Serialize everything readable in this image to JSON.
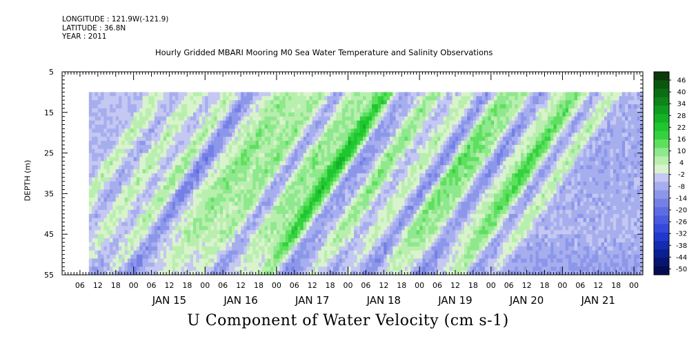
{
  "header": {
    "longitude": "LONGITUDE : 121.9W(-121.9)",
    "latitude": "LATITUDE : 36.8N",
    "year": "YEAR : 2011"
  },
  "chart_data": {
    "type": "heatmap",
    "title": "Hourly Gridded MBARI Mooring M0 Sea Water Temperature and Salinity Observations",
    "xlabel": "U Component of Water Velocity (cm s-1)",
    "ylabel": "DEPTH (m)",
    "y_axis": {
      "range": [
        5,
        55
      ],
      "inverted": true,
      "ticks": [
        5,
        15,
        25,
        35,
        45,
        55
      ],
      "data_depth_range": [
        10,
        55
      ]
    },
    "x_axis": {
      "start": "2011-01-14T00:00",
      "end": "2011-01-22T03:00",
      "data_start": "2011-01-14T09:00",
      "data_end": "2011-01-22T03:00",
      "hour_tick_labels": [
        "06",
        "12",
        "18",
        "00",
        "06",
        "12",
        "18",
        "00",
        "06",
        "12",
        "18",
        "00",
        "06",
        "12",
        "18",
        "00",
        "06",
        "12",
        "18",
        "00",
        "06",
        "12",
        "18",
        "00",
        "06",
        "12",
        "18",
        "00",
        "06",
        "12",
        "18",
        "00"
      ],
      "day_labels": [
        "JAN 15",
        "JAN 16",
        "JAN 17",
        "JAN 18",
        "JAN 19",
        "JAN 20",
        "JAN 21"
      ]
    },
    "colorbar": {
      "labels": [
        "46",
        "40",
        "34",
        "28",
        "22",
        "16",
        "10",
        "4",
        "-2",
        "-8",
        "-14",
        "-20",
        "-26",
        "-32",
        "-38",
        "-44",
        "-50"
      ],
      "colors": [
        "#0a3a0a",
        "#0b560f",
        "#0b6e12",
        "#0c8519",
        "#109c1f",
        "#15b226",
        "#1fc62f",
        "#35d23f",
        "#5ee05e",
        "#8ee88d",
        "#b9efae",
        "#d9f3cc",
        "#c4c8f2",
        "#a6aeee",
        "#8d97ea",
        "#7580e6",
        "#5e6ce3",
        "#4a5ae0",
        "#3449db",
        "#2038cc",
        "#132cb2",
        "#0b1f90",
        "#071570",
        "#040c52"
      ]
    },
    "velocity_profile_by_hour_cm_s": [
      {
        "time": "2011-01-14T09:00",
        "u": -4
      },
      {
        "time": "2011-01-14T13:00",
        "u": 8
      },
      {
        "time": "2011-01-14T20:00",
        "u": -6
      },
      {
        "time": "2011-01-15T02:00",
        "u": 8
      },
      {
        "time": "2011-01-15T08:00",
        "u": -4
      },
      {
        "time": "2011-01-15T14:00",
        "u": 10
      },
      {
        "time": "2011-01-15T20:00",
        "u": -14
      },
      {
        "time": "2011-01-16T02:00",
        "u": 4
      },
      {
        "time": "2011-01-16T09:00",
        "u": 14
      },
      {
        "time": "2011-01-16T14:00",
        "u": 8
      },
      {
        "time": "2011-01-16T20:00",
        "u": 12
      },
      {
        "time": "2011-01-17T02:00",
        "u": -8
      },
      {
        "time": "2011-01-17T08:00",
        "u": 12
      },
      {
        "time": "2011-01-17T13:00",
        "u": 10
      },
      {
        "time": "2011-01-17T18:00",
        "u": 28
      },
      {
        "time": "2011-01-18T00:00",
        "u": -10
      },
      {
        "time": "2011-01-18T04:00",
        "u": -6
      },
      {
        "time": "2011-01-18T10:00",
        "u": 14
      },
      {
        "time": "2011-01-18T16:00",
        "u": -4
      },
      {
        "time": "2011-01-18T22:00",
        "u": 8
      },
      {
        "time": "2011-01-19T04:00",
        "u": -12
      },
      {
        "time": "2011-01-19T10:00",
        "u": 16
      },
      {
        "time": "2011-01-19T16:00",
        "u": 12
      },
      {
        "time": "2011-01-19T22:00",
        "u": -12
      },
      {
        "time": "2011-01-20T04:00",
        "u": 6
      },
      {
        "time": "2011-01-20T10:00",
        "u": 20
      },
      {
        "time": "2011-01-20T16:00",
        "u": -8
      },
      {
        "time": "2011-01-20T22:00",
        "u": 8
      },
      {
        "time": "2011-01-21T03:00",
        "u": -6
      }
    ]
  }
}
